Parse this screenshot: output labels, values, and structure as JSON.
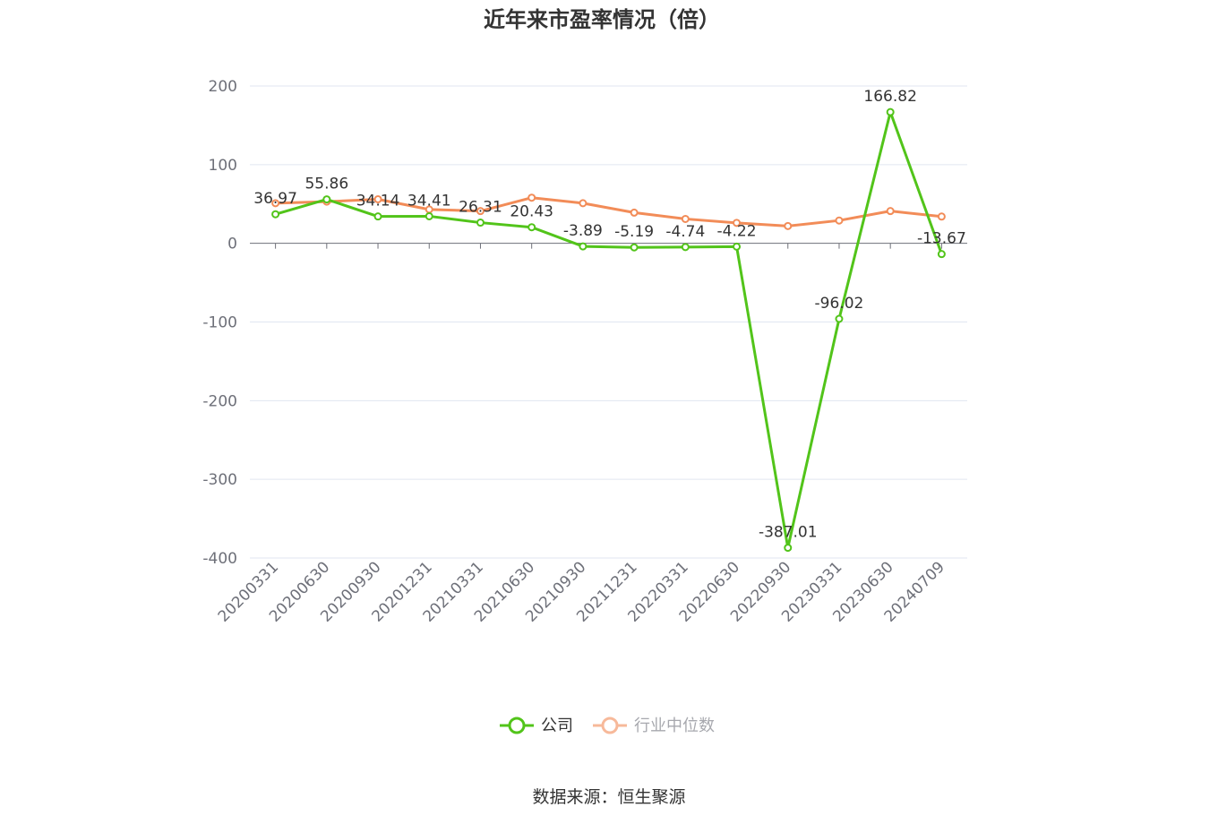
{
  "chart_data": {
    "type": "line",
    "title": "近年来市盈率情况（倍）",
    "categories": [
      "20200331",
      "20200630",
      "20200930",
      "20201231",
      "20210331",
      "20210630",
      "20210930",
      "20211231",
      "20220331",
      "20220630",
      "20220930",
      "20230331",
      "20230630",
      "20240709"
    ],
    "y_ticks": [
      "200",
      "100",
      "0",
      "-100",
      "-200",
      "-300",
      "-400"
    ],
    "ylim": [
      -400,
      200
    ],
    "grid": true,
    "legend_position": "bottom",
    "series": [
      {
        "name": "公司",
        "color": "#52c41a",
        "values": [
          36.97,
          55.86,
          34.14,
          34.41,
          26.31,
          20.43,
          -3.89,
          -5.19,
          -4.74,
          -4.22,
          -387.01,
          -96.02,
          166.82,
          -13.67
        ],
        "labels": [
          "36.97",
          "55.86",
          "34.14",
          "34.41",
          "26.31",
          "20.43",
          "-3.89",
          "-5.19",
          "-4.74",
          "-4.22",
          "-387.01",
          "-96.02",
          "166.82",
          "-13.67"
        ]
      },
      {
        "name": "行业中位数",
        "color": "#f28c58",
        "values": [
          51,
          53,
          56,
          43,
          41,
          58,
          51,
          39,
          31,
          26,
          22,
          29,
          41,
          34
        ]
      }
    ],
    "source": "数据来源：恒生聚源"
  }
}
